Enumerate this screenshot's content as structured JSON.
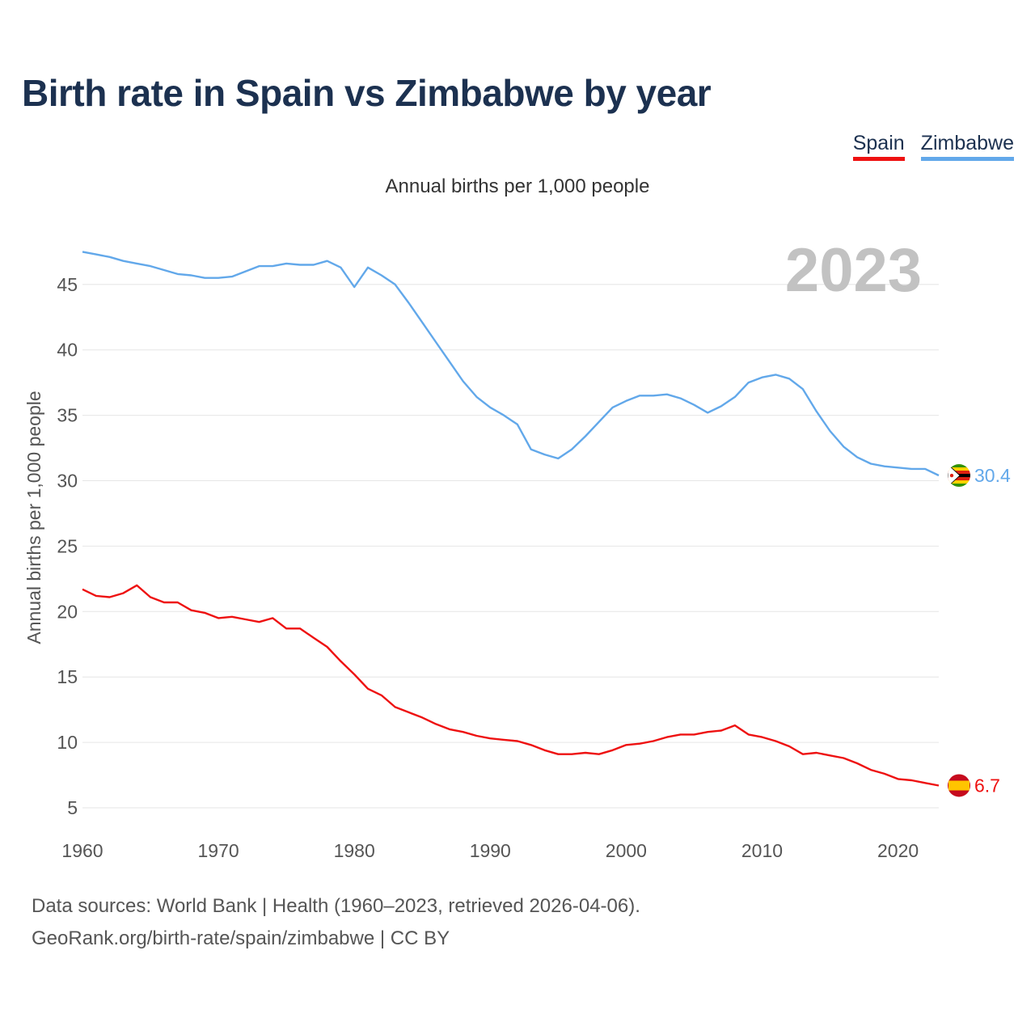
{
  "title": "Birth rate in Spain vs Zimbabwe by year",
  "subtitle": "Annual births per 1,000 people",
  "legend": [
    {
      "label": "Spain",
      "color": "#ee1111"
    },
    {
      "label": "Zimbabwe",
      "color": "#62a8ea"
    }
  ],
  "source": {
    "line1": "Data sources: World Bank | Health (1960–2023, retrieved 2026-04-06).",
    "line2": "GeoRank.org/birth-rate/spain/zimbabwe | CC BY"
  },
  "chart_data": {
    "type": "line",
    "title": "Birth rate in Spain vs Zimbabwe by year",
    "subtitle": "Annual births per 1,000 people",
    "xlabel": "",
    "ylabel": "Annual births per 1,000 people",
    "year_label": "2023",
    "xlim": [
      1960,
      2023
    ],
    "ylim": [
      5,
      48
    ],
    "x_ticks": [
      1960,
      1970,
      1980,
      1990,
      2000,
      2010,
      2020
    ],
    "y_ticks": [
      5,
      10,
      15,
      20,
      25,
      30,
      35,
      40,
      45
    ],
    "grid": true,
    "legend_position": "top-right",
    "x": [
      1960,
      1961,
      1962,
      1963,
      1964,
      1965,
      1966,
      1967,
      1968,
      1969,
      1970,
      1971,
      1972,
      1973,
      1974,
      1975,
      1976,
      1977,
      1978,
      1979,
      1980,
      1981,
      1982,
      1983,
      1984,
      1985,
      1986,
      1987,
      1988,
      1989,
      1990,
      1991,
      1992,
      1993,
      1994,
      1995,
      1996,
      1997,
      1998,
      1999,
      2000,
      2001,
      2002,
      2003,
      2004,
      2005,
      2006,
      2007,
      2008,
      2009,
      2010,
      2011,
      2012,
      2013,
      2014,
      2015,
      2016,
      2017,
      2018,
      2019,
      2020,
      2021,
      2022,
      2023
    ],
    "series": [
      {
        "name": "Spain",
        "color": "#ee1111",
        "end_label": "6.7",
        "values": [
          21.7,
          21.2,
          21.1,
          21.4,
          22.0,
          21.1,
          20.7,
          20.7,
          20.1,
          19.9,
          19.5,
          19.6,
          19.4,
          19.2,
          19.5,
          18.7,
          18.7,
          18.0,
          17.3,
          16.2,
          15.2,
          14.1,
          13.6,
          12.7,
          12.3,
          11.9,
          11.4,
          11.0,
          10.8,
          10.5,
          10.3,
          10.2,
          10.1,
          9.8,
          9.4,
          9.1,
          9.1,
          9.2,
          9.1,
          9.4,
          9.8,
          9.9,
          10.1,
          10.4,
          10.6,
          10.6,
          10.8,
          10.9,
          11.3,
          10.6,
          10.4,
          10.1,
          9.7,
          9.1,
          9.2,
          9.0,
          8.8,
          8.4,
          7.9,
          7.6,
          7.2,
          7.1,
          6.9,
          6.7
        ]
      },
      {
        "name": "Zimbabwe",
        "color": "#62a8ea",
        "end_label": "30.4",
        "values": [
          47.5,
          47.3,
          47.1,
          46.8,
          46.6,
          46.4,
          46.1,
          45.8,
          45.7,
          45.5,
          45.5,
          45.6,
          46.0,
          46.4,
          46.4,
          46.6,
          46.5,
          46.5,
          46.8,
          46.3,
          44.8,
          46.3,
          45.7,
          45.0,
          43.6,
          42.1,
          40.6,
          39.1,
          37.6,
          36.4,
          35.6,
          35.0,
          34.3,
          32.4,
          32.0,
          31.7,
          32.4,
          33.4,
          34.5,
          35.6,
          36.1,
          36.5,
          36.5,
          36.6,
          36.3,
          35.8,
          35.2,
          35.7,
          36.4,
          37.5,
          37.9,
          38.1,
          37.8,
          37.0,
          35.3,
          33.8,
          32.6,
          31.8,
          31.3,
          31.1,
          31.0,
          30.9,
          30.9,
          30.4
        ]
      }
    ]
  }
}
